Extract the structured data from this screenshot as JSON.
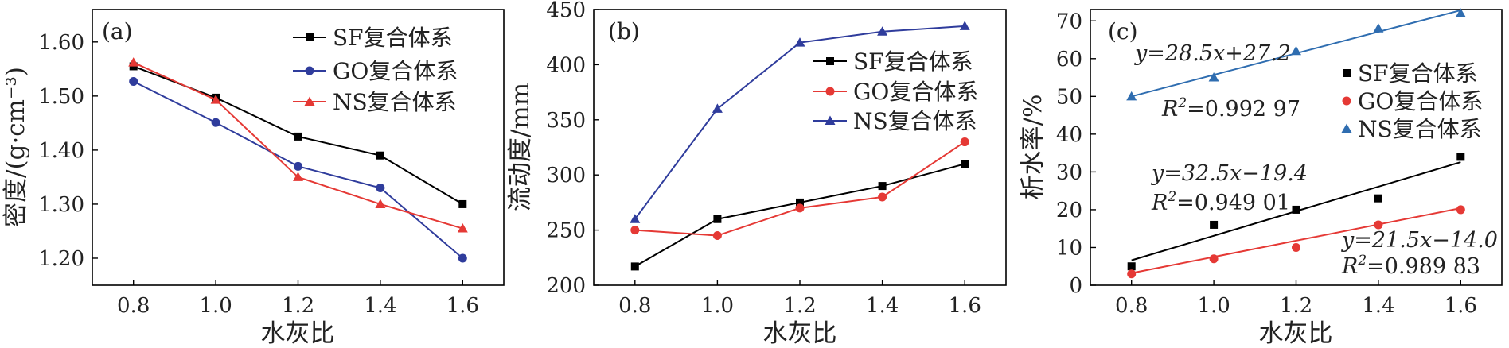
{
  "chart_data": [
    {
      "type": "line",
      "panel_label": "(a)",
      "xlabel": "水灰比",
      "ylabel": "密度/(g·cm⁻³)",
      "x": [
        0.8,
        1.0,
        1.2,
        1.4,
        1.6
      ],
      "xticks": [
        "0.8",
        "1.0",
        "1.2",
        "1.4",
        "1.6"
      ],
      "xlim": [
        0.7,
        1.7
      ],
      "ylim": [
        1.15,
        1.66
      ],
      "yticks": [
        "1.20",
        "1.30",
        "1.40",
        "1.50",
        "1.60"
      ],
      "legend_position": "top-right",
      "series": [
        {
          "name": "SF复合体系",
          "color": "#000000",
          "marker": "square",
          "values": [
            1.555,
            1.497,
            1.425,
            1.39,
            1.3
          ]
        },
        {
          "name": "GO复合体系",
          "color": "#2f3c9c",
          "marker": "circle",
          "values": [
            1.527,
            1.451,
            1.37,
            1.33,
            1.2
          ]
        },
        {
          "name": "NS复合体系",
          "color": "#e53935",
          "marker": "triangle",
          "values": [
            1.562,
            1.493,
            1.35,
            1.3,
            1.255
          ]
        }
      ]
    },
    {
      "type": "line",
      "panel_label": "(b)",
      "xlabel": "水灰比",
      "ylabel": "流动度/mm",
      "x": [
        0.8,
        1.0,
        1.2,
        1.4,
        1.6
      ],
      "xticks": [
        "0.8",
        "1.0",
        "1.2",
        "1.4",
        "1.6"
      ],
      "xlim": [
        0.7,
        1.7
      ],
      "ylim": [
        200,
        450
      ],
      "yticks": [
        "200",
        "250",
        "300",
        "350",
        "400",
        "450"
      ],
      "legend_position": "top-right",
      "series": [
        {
          "name": "SF复合体系",
          "color": "#000000",
          "marker": "square",
          "values": [
            217,
            260,
            275,
            290,
            310
          ]
        },
        {
          "name": "GO复合体系",
          "color": "#e53935",
          "marker": "circle",
          "values": [
            250,
            245,
            270,
            280,
            330
          ]
        },
        {
          "name": "NS复合体系",
          "color": "#2f3c9c",
          "marker": "triangle",
          "values": [
            260,
            360,
            420,
            430,
            435
          ]
        }
      ]
    },
    {
      "type": "scatter",
      "panel_label": "(c)",
      "xlabel": "水灰比",
      "ylabel": "析水率/%",
      "x": [
        0.8,
        1.0,
        1.2,
        1.4,
        1.6
      ],
      "xticks": [
        "0.8",
        "1.0",
        "1.2",
        "1.4",
        "1.6"
      ],
      "xlim": [
        0.7,
        1.7
      ],
      "ylim": [
        0,
        73
      ],
      "yticks": [
        "0",
        "10",
        "20",
        "30",
        "40",
        "50",
        "60",
        "70"
      ],
      "legend_position": "right",
      "series": [
        {
          "name": "SF复合体系",
          "color": "#000000",
          "marker": "square",
          "values": [
            5,
            16,
            20,
            23,
            34
          ],
          "fit": {
            "slope": 32.5,
            "intercept": -19.4
          }
        },
        {
          "name": "GO复合体系",
          "color": "#e53935",
          "marker": "circle",
          "values": [
            3,
            7,
            10,
            16,
            20
          ],
          "fit": {
            "slope": 21.5,
            "intercept": -14.0
          }
        },
        {
          "name": "NS复合体系",
          "color": "#2f6db0",
          "marker": "triangle",
          "values": [
            50,
            55,
            62,
            68,
            72
          ],
          "fit": {
            "slope": 28.5,
            "intercept": 27.2
          }
        }
      ],
      "annotations": [
        {
          "equation": "y=28.5x+27.2",
          "r2_prefix": "R",
          "r2_exp": "2",
          "r2_value": "=0.992 97"
        },
        {
          "equation": "y=32.5x−19.4",
          "r2_prefix": "R",
          "r2_exp": "2",
          "r2_value": "=0.949 01"
        },
        {
          "equation": "y=21.5x−14.0",
          "r2_prefix": "R",
          "r2_exp": "2",
          "r2_value": "=0.989 83"
        }
      ]
    }
  ]
}
